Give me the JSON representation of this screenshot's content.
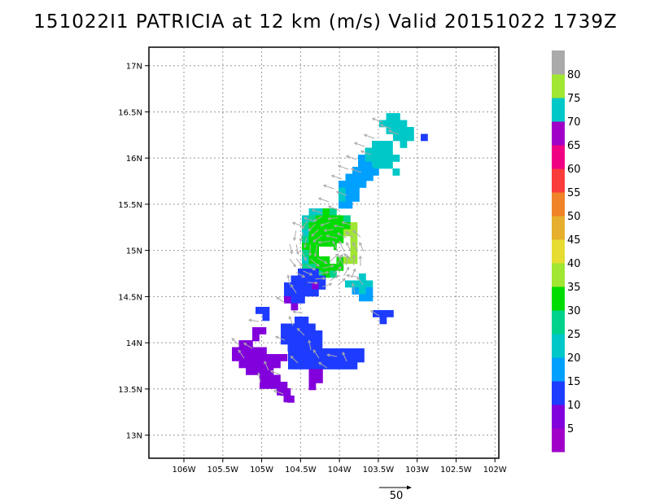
{
  "title": "151022I1 PATRICIA at 12 km (m/s) Valid 20151022 1739Z",
  "map": {
    "lon_range": [
      -106.45,
      -101.95
    ],
    "lat_range": [
      12.75,
      17.2
    ],
    "lon_ticks": [
      {
        "value": -106.0,
        "label": "106W"
      },
      {
        "value": -105.5,
        "label": "105.5W"
      },
      {
        "value": -105.0,
        "label": "105W"
      },
      {
        "value": -104.5,
        "label": "104.5W"
      },
      {
        "value": -104.0,
        "label": "104W"
      },
      {
        "value": -103.5,
        "label": "103.5W"
      },
      {
        "value": -103.0,
        "label": "103W"
      },
      {
        "value": -102.5,
        "label": "102.5W"
      },
      {
        "value": -102.0,
        "label": "102W"
      }
    ],
    "lat_ticks": [
      {
        "value": 13.0,
        "label": "13N"
      },
      {
        "value": 13.5,
        "label": "13.5N"
      },
      {
        "value": 14.0,
        "label": "14N"
      },
      {
        "value": 14.5,
        "label": "14.5N"
      },
      {
        "value": 15.0,
        "label": "15N"
      },
      {
        "value": 15.5,
        "label": "15.5N"
      },
      {
        "value": 16.0,
        "label": "16N"
      },
      {
        "value": 16.5,
        "label": "16.5N"
      },
      {
        "value": 17.0,
        "label": "17N"
      }
    ],
    "grid": true
  },
  "colorbar": {
    "bins": [
      {
        "label": "",
        "color": "#a000c8"
      },
      {
        "label": "5",
        "color": "#8200dc"
      },
      {
        "label": "10",
        "color": "#1e3cff"
      },
      {
        "label": "15",
        "color": "#00a0ff"
      },
      {
        "label": "20",
        "color": "#00c8c8"
      },
      {
        "label": "25",
        "color": "#00d28c"
      },
      {
        "label": "30",
        "color": "#00dc00"
      },
      {
        "label": "35",
        "color": "#a0e632"
      },
      {
        "label": "40",
        "color": "#e6dc32"
      },
      {
        "label": "45",
        "color": "#e6af2d"
      },
      {
        "label": "50",
        "color": "#f08228"
      },
      {
        "label": "55",
        "color": "#fa3c3c"
      },
      {
        "label": "60",
        "color": "#f00082"
      },
      {
        "label": "65",
        "color": "#a000c8"
      },
      {
        "label": "70",
        "color": "#00c8c8"
      },
      {
        "label": "75",
        "color": "#a0e632"
      },
      {
        "label": "80",
        "color": "#aaaaaa"
      }
    ]
  },
  "vector_key": {
    "label": "50"
  },
  "colors": {
    "grid": "#999999",
    "vector": "#aaaaaa",
    "frame": "#000000"
  },
  "chart_data": {
    "type": "heatmap",
    "title": "151022I1 PATRICIA at 12 km (m/s) Valid 20151022 1739Z",
    "units": "m/s",
    "cell_size_deg": 0.05,
    "regions": [
      {
        "lon": [
          -105.0,
          -104.75
        ],
        "lat": [
          13.55,
          14.2
        ],
        "speed_range": [
          0,
          10
        ]
      },
      {
        "lon": [
          -105.45,
          -104.95
        ],
        "lat": [
          13.5,
          14.05
        ],
        "speed_range": [
          0,
          10
        ]
      },
      {
        "lon": [
          -104.8,
          -104.55
        ],
        "lat": [
          14.35,
          14.7
        ],
        "speed_range": [
          5,
          15
        ]
      },
      {
        "lon": [
          -104.75,
          -104.3
        ],
        "lat": [
          13.7,
          14.25
        ],
        "speed_range": [
          5,
          15
        ]
      },
      {
        "lon": [
          -104.6,
          -103.85
        ],
        "lat": [
          13.7,
          13.85
        ],
        "speed_range": [
          5,
          15
        ]
      },
      {
        "lon": [
          -104.55,
          -104.2
        ],
        "lat": [
          14.5,
          14.8
        ],
        "speed_range": [
          10,
          20
        ]
      },
      {
        "lon": [
          -104.45,
          -103.9
        ],
        "lat": [
          14.8,
          15.4
        ],
        "speed_range": [
          20,
          40
        ]
      },
      {
        "lon": [
          -104.1,
          -103.85
        ],
        "lat": [
          15.3,
          15.8
        ],
        "speed_range": [
          15,
          25
        ]
      },
      {
        "lon": [
          -103.95,
          -103.6
        ],
        "lat": [
          15.7,
          16.1
        ],
        "speed_range": [
          15,
          25
        ]
      },
      {
        "lon": [
          -103.7,
          -103.4
        ],
        "lat": [
          15.8,
          16.1
        ],
        "speed_range": [
          20,
          25
        ]
      },
      {
        "lon": [
          -103.4,
          -103.15
        ],
        "lat": [
          16.2,
          16.45
        ],
        "speed_range": [
          20,
          25
        ]
      },
      {
        "lon": [
          -103.85,
          -103.55
        ],
        "lat": [
          14.45,
          14.65
        ],
        "speed_range": [
          15,
          25
        ]
      },
      {
        "lon": [
          -103.55,
          -103.4
        ],
        "lat": [
          14.2,
          14.3
        ],
        "speed_range": [
          10,
          15
        ]
      }
    ],
    "eye": {
      "lon": -104.05,
      "lat": 14.97
    }
  }
}
